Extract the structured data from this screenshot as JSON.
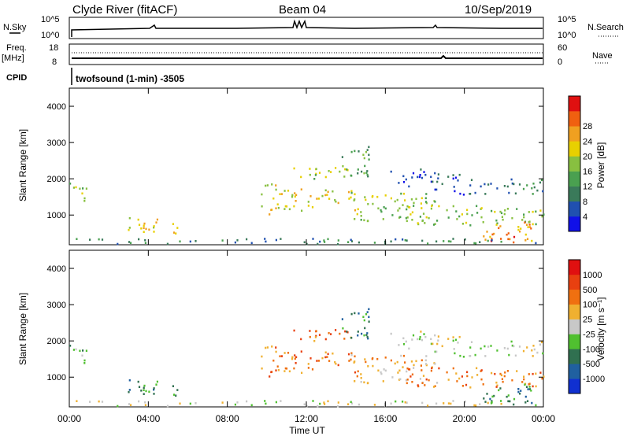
{
  "header": {
    "station": "Clyde River (fitACF)",
    "beam": "Beam 04",
    "date": "10/Sep/2019"
  },
  "top_panels": {
    "nsky_label": "N.Sky",
    "nsky_ticks": [
      "10^5",
      "10^0"
    ],
    "nsearch_label": "N.Search",
    "nsearch_ticks": [
      "10^5",
      "10^0"
    ],
    "freq_label": "Freq.",
    "freq_unit": "[MHz]",
    "freq_ticks": [
      "18",
      "8"
    ],
    "nave_label": "Nave",
    "nave_ticks": [
      "60",
      "0"
    ],
    "cpid_label": "CPID",
    "cpid_text": "twofsound (1-min) -3505"
  },
  "x_axis": {
    "label": "Time UT",
    "ticks": [
      "00:00",
      "04:00",
      "08:00",
      "12:00",
      "16:00",
      "20:00",
      "00:00"
    ]
  },
  "y_axis": {
    "label": "Slant Range [km]",
    "ticks": [
      "1000",
      "2000",
      "3000",
      "4000"
    ]
  },
  "colorbars": {
    "power": {
      "label": "Power [dB]",
      "ticks": [
        "4",
        "8",
        "12",
        "16",
        "20",
        "24",
        "28"
      ],
      "colors": [
        "#1010e8",
        "#2050b0",
        "#3a7a5a",
        "#4aa050",
        "#88c040",
        "#e8d000",
        "#f0a020",
        "#f06010",
        "#e01010"
      ]
    },
    "velocity": {
      "label": "Velocity [m s⁻¹]",
      "ticks": [
        "1000",
        "500",
        "100",
        "25",
        "-25",
        "-100",
        "-500",
        "-1000"
      ],
      "colors": [
        "#1030d0",
        "#2060a0",
        "#307050",
        "#50c030",
        "#c8c8c8",
        "#f0b030",
        "#f07010",
        "#e84010",
        "#e01010"
      ]
    }
  },
  "chart_data": {
    "type": "heatmap",
    "x_unit": "hours UT",
    "xlim": [
      0,
      24
    ],
    "ylim": [
      180,
      4500
    ],
    "y_unit": "km",
    "echo_regions": [
      {
        "t0": 0.0,
        "t1": 0.9,
        "r0": 1300,
        "r1": 1900,
        "power_level": 4,
        "velocity_level": 3
      },
      {
        "t0": 2.8,
        "t1": 5.6,
        "r0": 450,
        "r1": 900,
        "power_level": 5,
        "velocity_level": 2
      },
      {
        "t0": 9.7,
        "t1": 10.5,
        "r0": 1000,
        "r1": 1900,
        "power_level": 5,
        "velocity_level": 6
      },
      {
        "t0": 10.4,
        "t1": 14.6,
        "r0": 1100,
        "r1": 1700,
        "power_level": 5,
        "velocity_level": 6
      },
      {
        "t0": 11.0,
        "t1": 14.3,
        "r0": 1950,
        "r1": 2300,
        "power_level": 4,
        "velocity_level": 6
      },
      {
        "t0": 13.6,
        "t1": 15.2,
        "r0": 2050,
        "r1": 2900,
        "power_level": 3,
        "velocity_level": 2
      },
      {
        "t0": 14.2,
        "t1": 18.6,
        "r0": 800,
        "r1": 1600,
        "power_level": 4,
        "velocity_level": 5
      },
      {
        "t0": 16.2,
        "t1": 18.4,
        "r0": 1750,
        "r1": 2250,
        "power_level": 1,
        "velocity_level": 4
      },
      {
        "t0": 18.4,
        "t1": 20.0,
        "r0": 1500,
        "r1": 2150,
        "power_level": 1,
        "velocity_level": 4
      },
      {
        "t0": 17.0,
        "t1": 24.0,
        "r0": 700,
        "r1": 1250,
        "power_level": 4,
        "velocity_level": 6
      },
      {
        "t0": 20.2,
        "t1": 24.0,
        "r0": 1550,
        "r1": 2000,
        "power_level": 2,
        "velocity_level": 4
      },
      {
        "t0": 20.8,
        "t1": 23.5,
        "r0": 250,
        "r1": 800,
        "power_level": 6,
        "velocity_level": 2
      },
      {
        "t0": 21.3,
        "t1": 22.5,
        "r0": 200,
        "r1": 500,
        "power_level": 8,
        "velocity_level": 3
      },
      {
        "t0": 0.0,
        "t1": 24.0,
        "r0": 180,
        "r1": 330,
        "power_level": 2,
        "velocity_level": 4
      }
    ]
  }
}
